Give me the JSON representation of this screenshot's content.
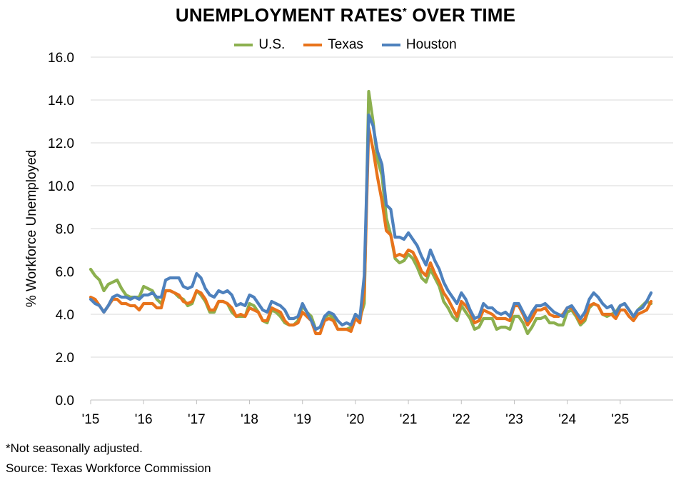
{
  "header": {
    "title": "UNEMPLOYMENT RATES",
    "title_sup": "*",
    "title_tail": " OVER TIME"
  },
  "footer": {
    "note": "*Not seasonally adjusted.",
    "source": "Source: Texas Workforce Commission"
  },
  "chart_data": {
    "type": "line",
    "title": "UNEMPLOYMENT RATES* OVER TIME",
    "ylabel": "% Workforce Unemployed",
    "xlabel": "",
    "ylim": [
      0,
      16
    ],
    "yticks": [
      "0.0",
      "2.0",
      "4.0",
      "6.0",
      "8.0",
      "10.0",
      "12.0",
      "14.0",
      "16.0"
    ],
    "x_start": "2015-01",
    "x_end": "2025-12",
    "x_tick_labels": [
      "'15",
      "'16",
      "'17",
      "'18",
      "'19",
      "'20",
      "'21",
      "'22",
      "'23",
      "'24",
      "'25"
    ],
    "grid": "horizontal",
    "legend_position": "top",
    "series": [
      {
        "name": "U.S.",
        "color": "#8cb04f",
        "values": [
          6.1,
          5.8,
          5.6,
          5.1,
          5.4,
          5.5,
          5.6,
          5.2,
          4.9,
          4.8,
          4.8,
          4.8,
          5.3,
          5.2,
          5.1,
          4.7,
          4.5,
          5.1,
          5.1,
          5.0,
          4.8,
          4.7,
          4.4,
          4.5,
          5.1,
          4.9,
          4.6,
          4.1,
          4.1,
          4.6,
          4.6,
          4.5,
          4.1,
          3.9,
          3.9,
          3.9,
          4.5,
          4.4,
          4.1,
          3.7,
          3.6,
          4.2,
          4.1,
          3.9,
          3.6,
          3.5,
          3.5,
          3.7,
          4.4,
          4.1,
          3.9,
          3.3,
          3.4,
          3.8,
          4.0,
          3.8,
          3.3,
          3.3,
          3.3,
          3.4,
          4.0,
          3.8,
          4.5,
          14.4,
          13.0,
          11.2,
          10.5,
          8.5,
          7.7,
          6.6,
          6.4,
          6.5,
          6.8,
          6.6,
          6.2,
          5.7,
          5.5,
          6.1,
          5.7,
          5.3,
          4.6,
          4.3,
          3.9,
          3.7,
          4.4,
          4.1,
          3.8,
          3.3,
          3.4,
          3.8,
          3.8,
          3.8,
          3.3,
          3.4,
          3.4,
          3.3,
          3.9,
          3.9,
          3.6,
          3.1,
          3.4,
          3.8,
          3.8,
          3.9,
          3.6,
          3.6,
          3.5,
          3.5,
          4.1,
          4.2,
          3.9,
          3.5,
          3.7,
          4.3,
          4.5,
          4.4,
          4.0,
          3.9,
          4.0,
          4.1,
          4.4,
          4.5,
          4.2,
          3.9,
          4.2,
          4.4,
          4.6,
          4.5
        ]
      },
      {
        "name": "Texas",
        "color": "#e8731b",
        "values": [
          4.8,
          4.7,
          4.4,
          4.1,
          4.4,
          4.7,
          4.7,
          4.5,
          4.5,
          4.4,
          4.4,
          4.2,
          4.5,
          4.5,
          4.5,
          4.3,
          4.3,
          5.1,
          5.1,
          5.0,
          4.9,
          4.6,
          4.5,
          4.6,
          5.1,
          5.0,
          4.7,
          4.2,
          4.2,
          4.6,
          4.6,
          4.5,
          4.3,
          3.9,
          4.0,
          3.9,
          4.3,
          4.2,
          4.1,
          3.7,
          3.7,
          4.3,
          4.2,
          4.1,
          3.7,
          3.5,
          3.5,
          3.6,
          4.1,
          3.9,
          3.7,
          3.1,
          3.1,
          3.7,
          3.8,
          3.7,
          3.3,
          3.3,
          3.3,
          3.2,
          3.8,
          3.6,
          5.0,
          12.7,
          11.7,
          10.4,
          9.3,
          7.9,
          7.7,
          6.7,
          6.8,
          6.7,
          7.0,
          6.9,
          6.5,
          6.0,
          5.8,
          6.4,
          5.9,
          5.5,
          5.0,
          4.7,
          4.3,
          3.9,
          4.6,
          4.4,
          4.1,
          3.6,
          3.7,
          4.2,
          4.1,
          4.0,
          3.8,
          3.8,
          3.8,
          3.7,
          4.4,
          4.4,
          4.0,
          3.5,
          3.8,
          4.2,
          4.2,
          4.3,
          4.0,
          3.9,
          3.9,
          4.0,
          4.3,
          4.3,
          4.0,
          3.6,
          3.8,
          4.4,
          4.5,
          4.4,
          4.0,
          4.0,
          4.0,
          3.8,
          4.2,
          4.2,
          3.9,
          3.7,
          4.0,
          4.1,
          4.2,
          4.6
        ]
      },
      {
        "name": "Houston",
        "color": "#4e81bd",
        "values": [
          4.7,
          4.5,
          4.4,
          4.1,
          4.4,
          4.8,
          4.9,
          4.8,
          4.8,
          4.7,
          4.8,
          4.7,
          4.9,
          4.9,
          5.0,
          4.8,
          4.8,
          5.6,
          5.7,
          5.7,
          5.7,
          5.3,
          5.2,
          5.3,
          5.9,
          5.7,
          5.2,
          4.9,
          4.8,
          5.1,
          5.0,
          5.1,
          4.9,
          4.4,
          4.5,
          4.4,
          4.9,
          4.8,
          4.5,
          4.2,
          4.1,
          4.6,
          4.5,
          4.4,
          4.2,
          3.8,
          3.8,
          3.9,
          4.5,
          4.1,
          3.7,
          3.3,
          3.4,
          3.9,
          4.1,
          4.0,
          3.7,
          3.5,
          3.6,
          3.5,
          4.0,
          3.8,
          5.8,
          13.3,
          12.8,
          11.6,
          11.0,
          9.1,
          8.9,
          7.6,
          7.6,
          7.5,
          7.8,
          7.5,
          7.2,
          6.7,
          6.3,
          7.0,
          6.5,
          6.1,
          5.5,
          5.1,
          4.8,
          4.5,
          5.0,
          4.7,
          4.2,
          3.8,
          3.9,
          4.5,
          4.3,
          4.3,
          4.1,
          4.0,
          4.1,
          3.9,
          4.5,
          4.5,
          4.1,
          3.7,
          4.1,
          4.4,
          4.4,
          4.5,
          4.3,
          4.1,
          4.0,
          3.9,
          4.3,
          4.4,
          4.1,
          3.8,
          4.1,
          4.7,
          5.0,
          4.8,
          4.5,
          4.3,
          4.4,
          4.0,
          4.4,
          4.5,
          4.2,
          3.9,
          4.2,
          4.3,
          4.6,
          5.0
        ]
      }
    ]
  }
}
